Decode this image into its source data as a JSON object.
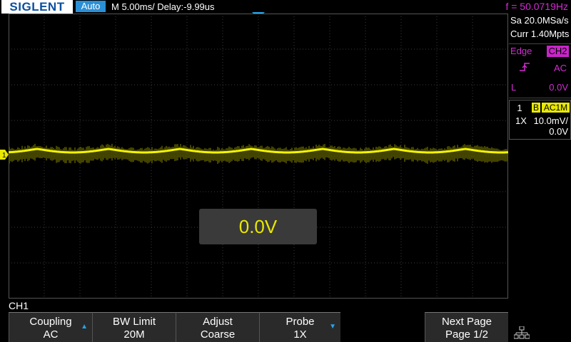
{
  "topbar": {
    "brand": "SIGLENT",
    "mode": "Auto",
    "timebase": "M 5.00ms/ Delay:-9.99us",
    "frequency": "f = 50.0719Hz"
  },
  "acquisition": {
    "sample_rate": "Sa 20.0MSa/s",
    "memory_depth": "Curr 1.40Mpts"
  },
  "trigger": {
    "type": "Edge",
    "source": "CH2",
    "slope_icon": "rising-edge-icon",
    "coupling": "AC",
    "level_label": "L",
    "level": "0.0V"
  },
  "channel": {
    "number": "1",
    "bw_badge": "B",
    "coupling_badge": "AC1M",
    "probe": "1X",
    "scale": "10.0mV/",
    "offset": "0.0V",
    "marker": "1",
    "color": "#e8e800"
  },
  "popup": {
    "value": "0.0V"
  },
  "menu": {
    "title": "CH1",
    "softkeys": [
      {
        "line1": "Coupling",
        "line2": "AC"
      },
      {
        "line1": "BW Limit",
        "line2": "20M"
      },
      {
        "line1": "Adjust",
        "line2": "Coarse"
      },
      {
        "line1": "Probe",
        "line2": "1X"
      },
      {
        "line1": "",
        "line2": ""
      },
      {
        "line1": "Next Page",
        "line2": "Page 1/2"
      }
    ]
  },
  "colors": {
    "trigger": "#d42bd4",
    "accent": "#2a8fd6",
    "trace": "#e8e800"
  }
}
